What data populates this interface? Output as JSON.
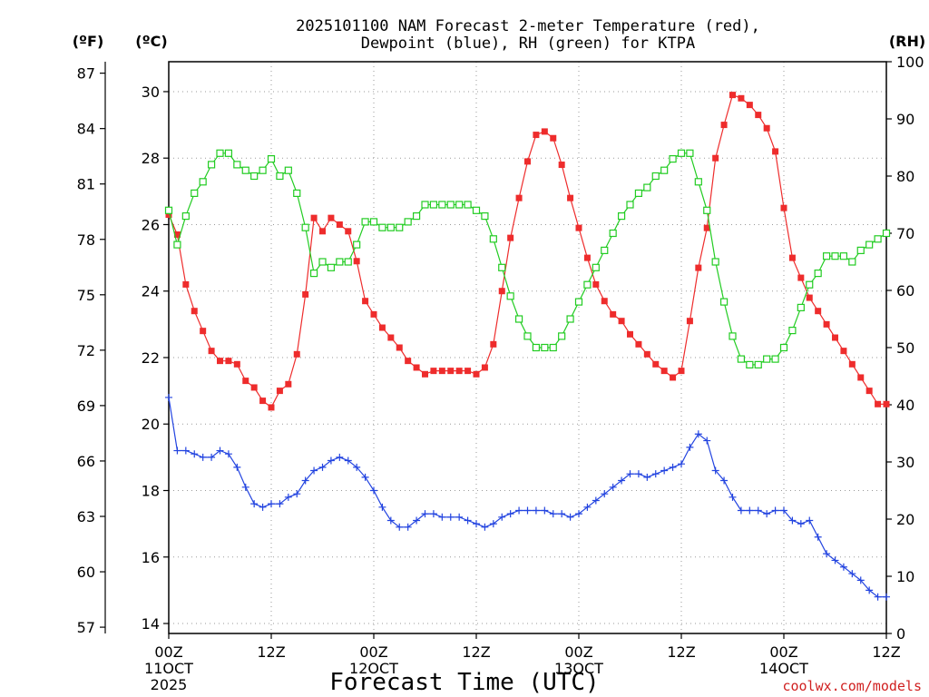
{
  "chart_data": {
    "type": "line",
    "title_line1": "2025101100 NAM Forecast 2-meter Temperature (red),",
    "title_line2": "Dewpoint (blue), RH (green) for KTPA",
    "unit_f": "(ºF)",
    "unit_c": "(ºC)",
    "unit_rh": "(RH)",
    "xlabel": "Forecast Time (UTC)",
    "credit": "coolwx.com/models",
    "x_hours_range": [
      0,
      84
    ],
    "ylim_c": [
      13.7,
      30.9
    ],
    "ylim_rh": [
      0,
      100
    ],
    "f_ticks": [
      57,
      60,
      63,
      66,
      69,
      72,
      75,
      78,
      81,
      84,
      87
    ],
    "c_ticks": [
      14,
      16,
      18,
      20,
      22,
      24,
      26,
      28,
      30
    ],
    "rh_ticks": [
      0,
      10,
      20,
      30,
      40,
      50,
      60,
      70,
      80,
      90,
      100
    ],
    "x_ticks": [
      {
        "hour": 0,
        "line1": "00Z",
        "line2": "11OCT",
        "line3": "2025"
      },
      {
        "hour": 12,
        "line1": "12Z",
        "line2": "",
        "line3": ""
      },
      {
        "hour": 24,
        "line1": "00Z",
        "line2": "12OCT",
        "line3": ""
      },
      {
        "hour": 36,
        "line1": "12Z",
        "line2": "",
        "line3": ""
      },
      {
        "hour": 48,
        "line1": "00Z",
        "line2": "13OCT",
        "line3": ""
      },
      {
        "hour": 60,
        "line1": "12Z",
        "line2": "",
        "line3": ""
      },
      {
        "hour": 72,
        "line1": "00Z",
        "line2": "14OCT",
        "line3": ""
      },
      {
        "hour": 84,
        "line1": "12Z",
        "line2": "",
        "line3": ""
      }
    ],
    "series": [
      {
        "name": "Temperature (°C)",
        "color": "#ee2c2c",
        "marker": "filled-square",
        "x": [
          0,
          1,
          2,
          3,
          4,
          5,
          6,
          7,
          8,
          9,
          10,
          11,
          12,
          13,
          14,
          15,
          16,
          17,
          18,
          19,
          20,
          21,
          22,
          23,
          24,
          25,
          26,
          27,
          28,
          29,
          30,
          31,
          32,
          33,
          34,
          35,
          36,
          37,
          38,
          39,
          40,
          41,
          42,
          43,
          44,
          45,
          46,
          47,
          48,
          49,
          50,
          51,
          52,
          53,
          54,
          55,
          56,
          57,
          58,
          59,
          60,
          61,
          62,
          63,
          64,
          65,
          66,
          67,
          68,
          69,
          70,
          71,
          72,
          73,
          74,
          75,
          76,
          77,
          78,
          79,
          80,
          81,
          82,
          83,
          84
        ],
        "values": [
          26.3,
          25.7,
          24.2,
          23.4,
          22.8,
          22.2,
          21.9,
          21.9,
          21.8,
          21.3,
          21.1,
          20.7,
          20.5,
          21.0,
          21.2,
          22.1,
          23.9,
          26.2,
          25.8,
          26.2,
          26.0,
          25.8,
          24.9,
          23.7,
          23.3,
          22.9,
          22.6,
          22.3,
          21.9,
          21.7,
          21.5,
          21.6,
          21.6,
          21.6,
          21.6,
          21.6,
          21.5,
          21.7,
          22.4,
          24.0,
          25.6,
          26.8,
          27.9,
          28.7,
          28.8,
          28.6,
          27.8,
          26.8,
          25.9,
          25.0,
          24.2,
          23.7,
          23.3,
          23.1,
          22.7,
          22.4,
          22.1,
          21.8,
          21.6,
          21.4,
          21.6,
          23.1,
          24.7,
          25.9,
          28.0,
          29.0,
          29.9,
          29.8,
          29.6,
          29.3,
          28.9,
          28.2,
          26.5,
          25.0,
          24.4,
          23.8,
          23.4,
          23.0,
          22.6,
          22.2,
          21.8,
          21.4,
          21.0,
          20.6,
          20.6
        ]
      },
      {
        "name": "Dewpoint (°C)",
        "color": "#2344e0",
        "marker": "plus",
        "x": [
          0,
          1,
          2,
          3,
          4,
          5,
          6,
          7,
          8,
          9,
          10,
          11,
          12,
          13,
          14,
          15,
          16,
          17,
          18,
          19,
          20,
          21,
          22,
          23,
          24,
          25,
          26,
          27,
          28,
          29,
          30,
          31,
          32,
          33,
          34,
          35,
          36,
          37,
          38,
          39,
          40,
          41,
          42,
          43,
          44,
          45,
          46,
          47,
          48,
          49,
          50,
          51,
          52,
          53,
          54,
          55,
          56,
          57,
          58,
          59,
          60,
          61,
          62,
          63,
          64,
          65,
          66,
          67,
          68,
          69,
          70,
          71,
          72,
          73,
          74,
          75,
          76,
          77,
          78,
          79,
          80,
          81,
          82,
          83,
          84
        ],
        "values": [
          20.8,
          19.2,
          19.2,
          19.1,
          19.0,
          19.0,
          19.2,
          19.1,
          18.7,
          18.1,
          17.6,
          17.5,
          17.6,
          17.6,
          17.8,
          17.9,
          18.3,
          18.6,
          18.7,
          18.9,
          19.0,
          18.9,
          18.7,
          18.4,
          18.0,
          17.5,
          17.1,
          16.9,
          16.9,
          17.1,
          17.3,
          17.3,
          17.2,
          17.2,
          17.2,
          17.1,
          17.0,
          16.9,
          17.0,
          17.2,
          17.3,
          17.4,
          17.4,
          17.4,
          17.4,
          17.3,
          17.3,
          17.2,
          17.3,
          17.5,
          17.7,
          17.9,
          18.1,
          18.3,
          18.5,
          18.5,
          18.4,
          18.5,
          18.6,
          18.7,
          18.8,
          19.3,
          19.7,
          19.5,
          18.6,
          18.3,
          17.8,
          17.4,
          17.4,
          17.4,
          17.3,
          17.4,
          17.4,
          17.1,
          17.0,
          17.1,
          16.6,
          16.1,
          15.9,
          15.7,
          15.5,
          15.3,
          15.0,
          14.8,
          14.8
        ]
      },
      {
        "name": "RH (%)",
        "color": "#22cc22",
        "marker": "hollow-square",
        "x": [
          0,
          1,
          2,
          3,
          4,
          5,
          6,
          7,
          8,
          9,
          10,
          11,
          12,
          13,
          14,
          15,
          16,
          17,
          18,
          19,
          20,
          21,
          22,
          23,
          24,
          25,
          26,
          27,
          28,
          29,
          30,
          31,
          32,
          33,
          34,
          35,
          36,
          37,
          38,
          39,
          40,
          41,
          42,
          43,
          44,
          45,
          46,
          47,
          48,
          49,
          50,
          51,
          52,
          53,
          54,
          55,
          56,
          57,
          58,
          59,
          60,
          61,
          62,
          63,
          64,
          65,
          66,
          67,
          68,
          69,
          70,
          71,
          72,
          73,
          74,
          75,
          76,
          77,
          78,
          79,
          80,
          81,
          82,
          83,
          84
        ],
        "values": [
          74,
          68,
          73,
          77,
          79,
          82,
          84,
          84,
          82,
          81,
          80,
          81,
          83,
          80,
          81,
          77,
          71,
          63,
          65,
          64,
          65,
          65,
          68,
          72,
          72,
          71,
          71,
          71,
          72,
          73,
          75,
          75,
          75,
          75,
          75,
          75,
          74,
          73,
          69,
          64,
          59,
          55,
          52,
          50,
          50,
          50,
          52,
          55,
          58,
          61,
          64,
          67,
          70,
          73,
          75,
          77,
          78,
          80,
          81,
          83,
          84,
          84,
          79,
          74,
          65,
          58,
          52,
          48,
          47,
          47,
          48,
          48,
          50,
          53,
          57,
          61,
          63,
          66,
          66,
          66,
          65,
          67,
          68,
          69,
          70
        ]
      }
    ]
  }
}
